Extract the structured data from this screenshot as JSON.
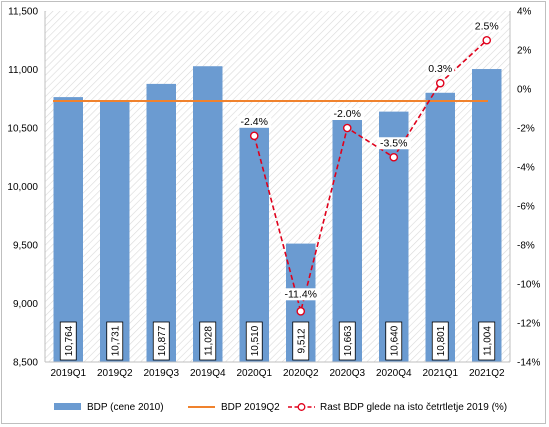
{
  "chart_data": {
    "type": "bar",
    "categories": [
      "2019Q1",
      "2019Q2",
      "2019Q3",
      "2019Q4",
      "2020Q1",
      "2020Q2",
      "2020Q3",
      "2020Q4",
      "2021Q1",
      "2021Q2"
    ],
    "series": [
      {
        "name": "BDP (cene 2010)",
        "type": "bar",
        "axis": "left",
        "values": [
          10764,
          10731,
          10877,
          11028,
          10510,
          9512,
          10663,
          10640,
          10801,
          11004
        ],
        "labels": [
          "10,764",
          "10,731",
          "10,877",
          "11,028",
          "10,510",
          "9,512",
          "10,663",
          "10,640",
          "10,801",
          "11,004"
        ],
        "color": "#6b9bd1"
      },
      {
        "name": "BDP 2019Q2",
        "type": "line",
        "axis": "left",
        "value": 10731,
        "color": "#f0822d"
      },
      {
        "name": "Rast BDP glede na isto četrtletje 2019 (%)",
        "type": "line",
        "axis": "right",
        "values": [
          null,
          null,
          null,
          null,
          -2.4,
          -11.4,
          -2.0,
          -3.5,
          0.3,
          2.5
        ],
        "labels": [
          "",
          "",
          "",
          "",
          "-2.4%",
          "-11.4%",
          "-2.0%",
          "-3.5%",
          "0.3%",
          "2.5%"
        ],
        "color": "#e0001b"
      }
    ],
    "y_left": {
      "ylim": [
        8500,
        11500
      ],
      "ticks": [
        "8,500",
        "9,000",
        "9,500",
        "10,000",
        "10,500",
        "11,000",
        "11,500"
      ],
      "tick_values": [
        8500,
        9000,
        9500,
        10000,
        10500,
        11000,
        11500
      ]
    },
    "y_right": {
      "ylim": [
        -14,
        4
      ],
      "ticks": [
        "-14%",
        "-12%",
        "-10%",
        "-8%",
        "-6%",
        "-4%",
        "-2%",
        "0%",
        "2%",
        "4%"
      ],
      "tick_values": [
        -14,
        -12,
        -10,
        -8,
        -6,
        -4,
        -2,
        0,
        2,
        4
      ]
    },
    "legend": {
      "placement": "bottom"
    },
    "grid": false,
    "title": "",
    "xlabel": "",
    "ylabel": ""
  }
}
